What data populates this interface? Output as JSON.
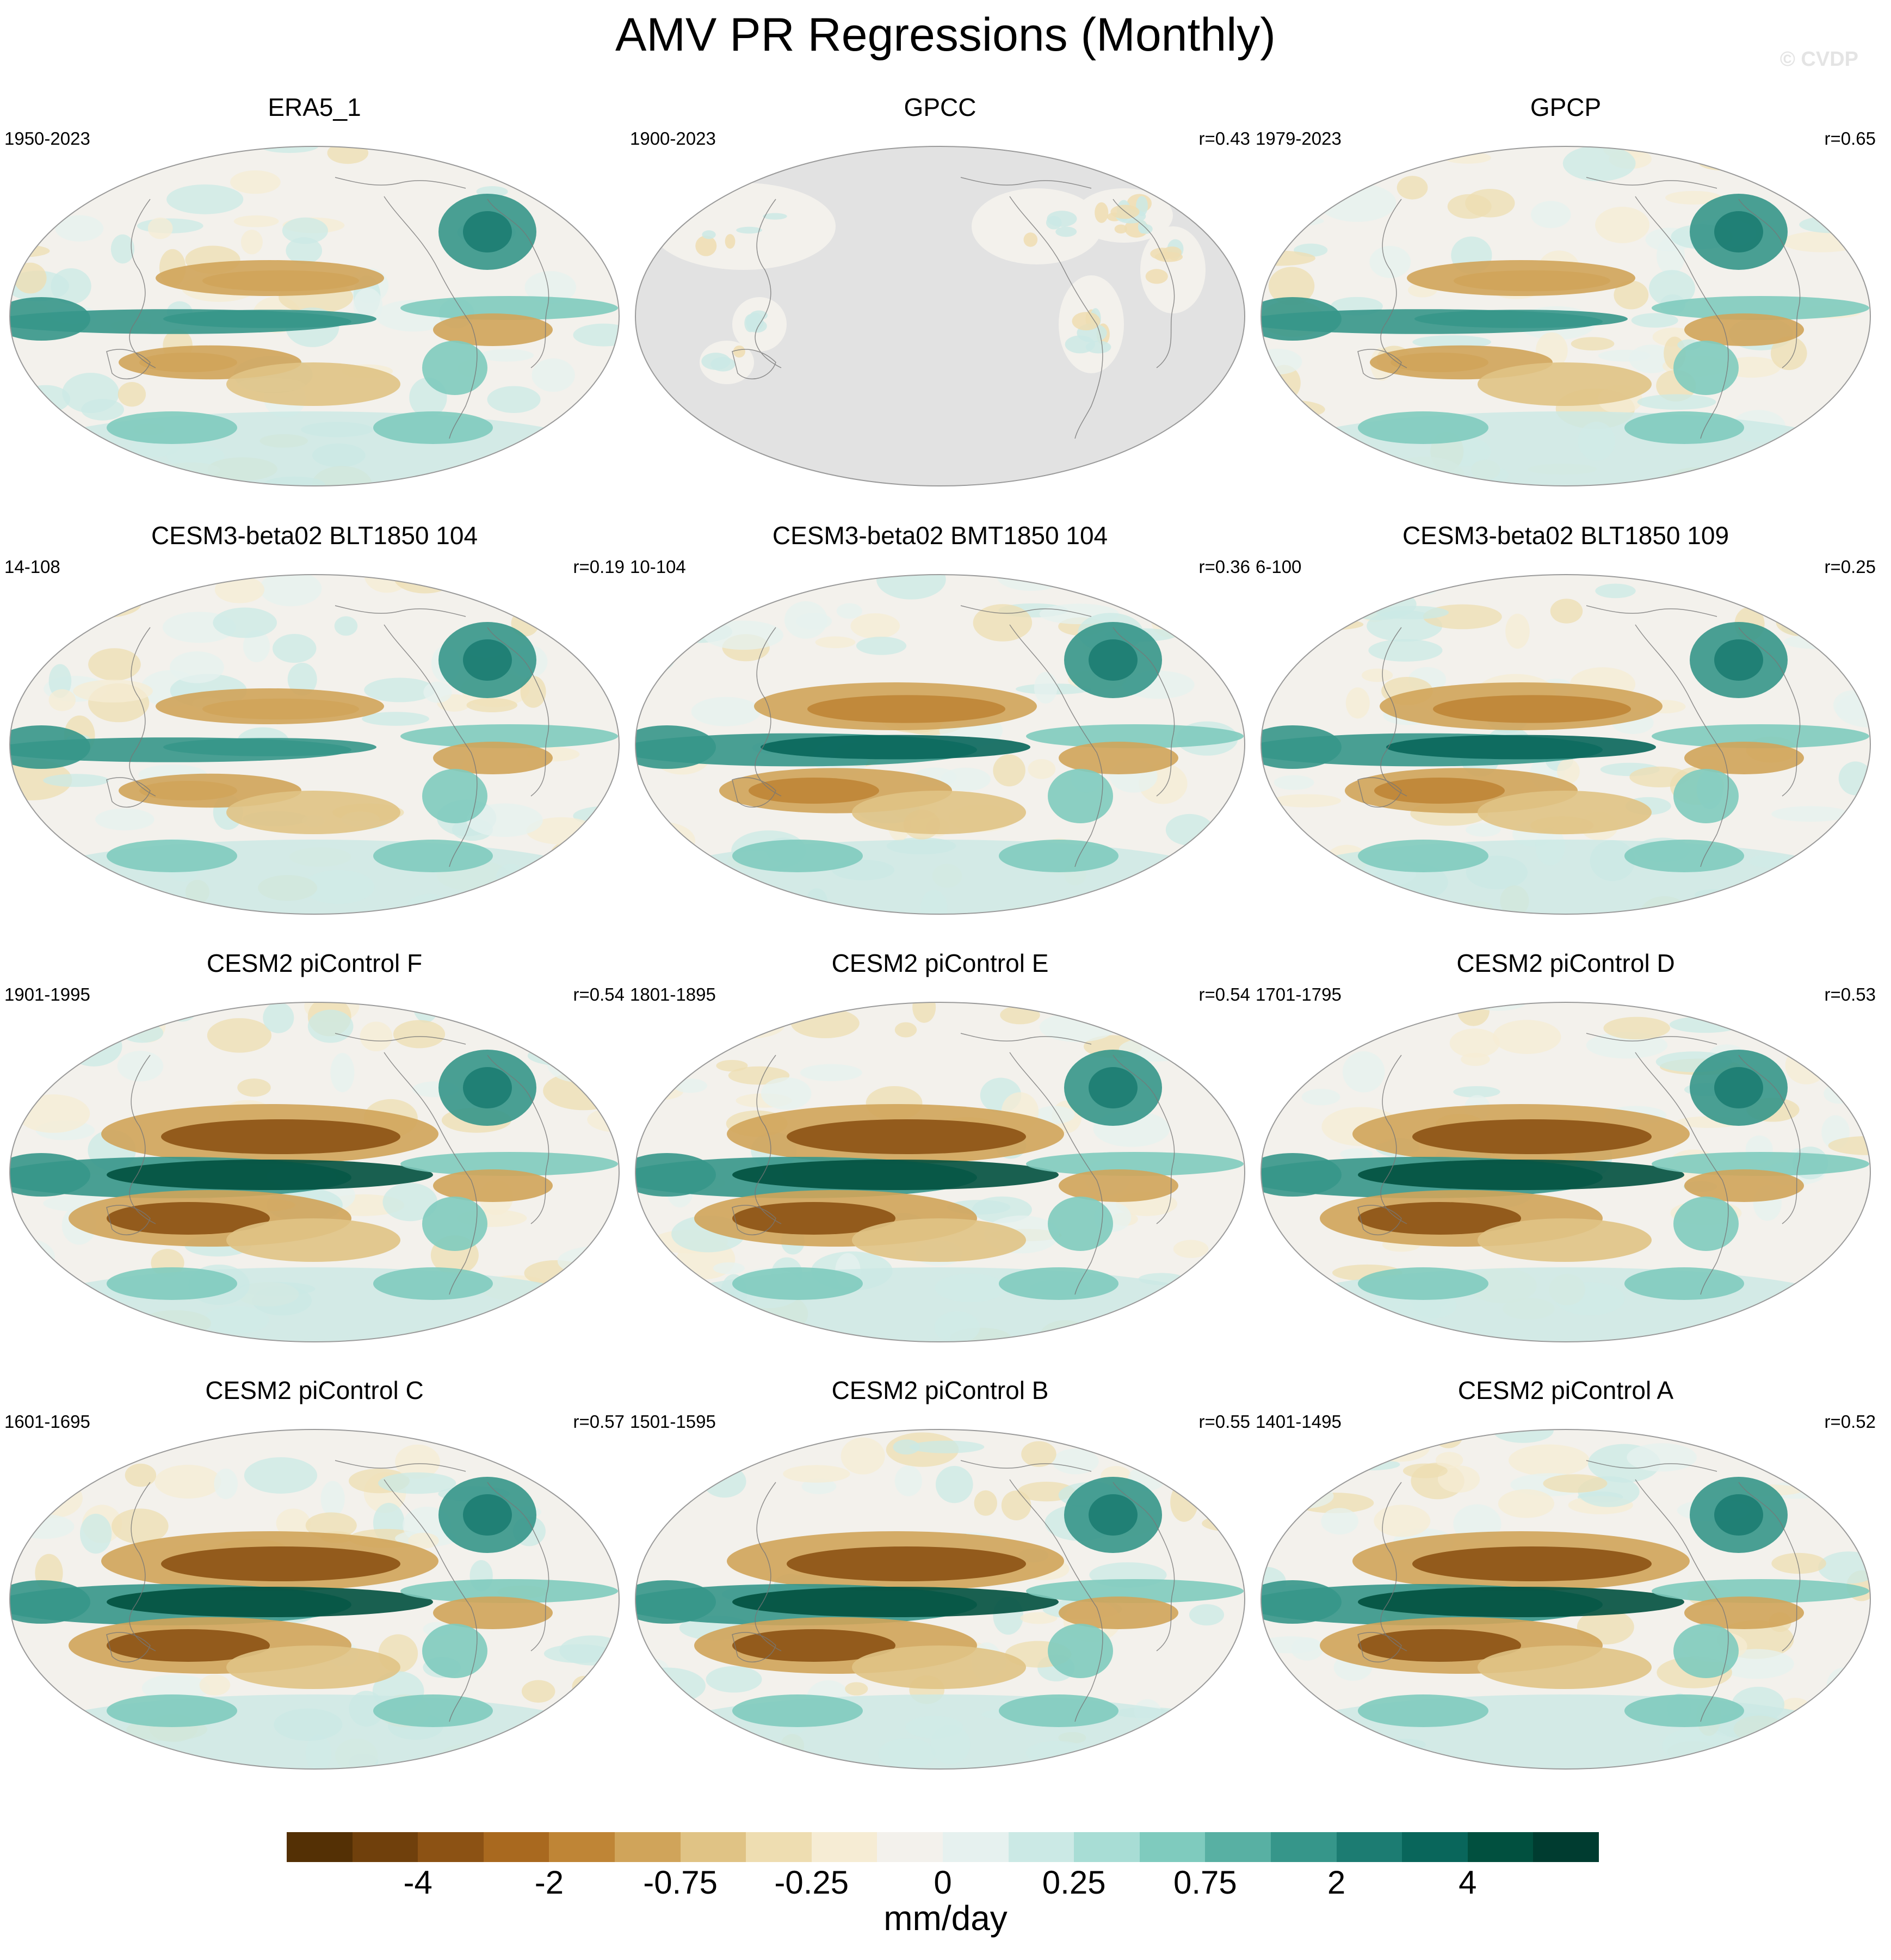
{
  "title": "AMV PR Regressions (Monthly)",
  "watermark": "© CVDP",
  "panels": [
    {
      "title": "ERA5_1",
      "period": "1950-2023",
      "r": "",
      "style": "obs"
    },
    {
      "title": "GPCC",
      "period": "1900-2023",
      "r": "r=0.43",
      "style": "land"
    },
    {
      "title": "GPCP",
      "period": "1979-2023",
      "r": "r=0.65",
      "style": "obs"
    },
    {
      "title": "CESM3-beta02 BLT1850 104",
      "period": "14-108",
      "r": "r=0.19",
      "style": "weak"
    },
    {
      "title": "CESM3-beta02 BMT1850 104",
      "period": "10-104",
      "r": "r=0.36",
      "style": "model"
    },
    {
      "title": "CESM3-beta02 BLT1850 109",
      "period": "6-100",
      "r": "r=0.25",
      "style": "model"
    },
    {
      "title": "CESM2 piControl F",
      "period": "1901-1995",
      "r": "r=0.54",
      "style": "strong"
    },
    {
      "title": "CESM2 piControl E",
      "period": "1801-1895",
      "r": "r=0.54",
      "style": "strong"
    },
    {
      "title": "CESM2 piControl D",
      "period": "1701-1795",
      "r": "r=0.53",
      "style": "strong"
    },
    {
      "title": "CESM2 piControl C",
      "period": "1601-1695",
      "r": "r=0.57",
      "style": "strong"
    },
    {
      "title": "CESM2 piControl B",
      "period": "1501-1595",
      "r": "r=0.55",
      "style": "strong"
    },
    {
      "title": "CESM2 piControl A",
      "period": "1401-1495",
      "r": "r=0.52",
      "style": "strong"
    }
  ],
  "colorbar": {
    "units": "mm/day",
    "colors": [
      "#543005",
      "#70400c",
      "#8c5214",
      "#a9691f",
      "#bf8536",
      "#d0a45a",
      "#e0c385",
      "#eeddb1",
      "#f6ecd4",
      "#f3f1ec",
      "#e6f1ef",
      "#cbe9e5",
      "#a8ddd5",
      "#7fcbbe",
      "#58b0a3",
      "#36968a",
      "#1c7c72",
      "#09665b",
      "#01503f",
      "#003c30"
    ],
    "labels": [
      "-4",
      "-2",
      "-0.75",
      "-0.25",
      "0",
      "0.25",
      "0.75",
      "2",
      "4"
    ]
  }
}
